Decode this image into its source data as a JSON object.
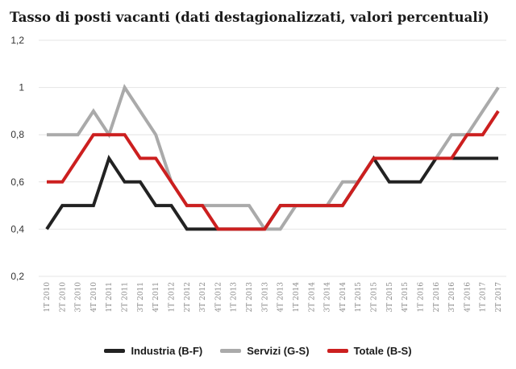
{
  "chart_data": {
    "type": "line",
    "title": "Tasso di posti vacanti (dati destagionalizzati, valori percentuali)",
    "categories": [
      "1T 2010",
      "2T 2010",
      "3T 2010",
      "4T 2010",
      "1T 2011",
      "2T 2011",
      "3T 2011",
      "4T 2011",
      "1T 2012",
      "2T 2012",
      "3T 2012",
      "4T 2012",
      "1T 2013",
      "2T 2013",
      "3T 2013",
      "4T 2013",
      "1T 2014",
      "2T 2014",
      "3T 2014",
      "4T 2014",
      "1T 2015",
      "2T 2015",
      "3T 2015",
      "4T 2015",
      "1T 2016",
      "2T 2016",
      "3T 2016",
      "4T 2016",
      "1T 2017",
      "2T 2017"
    ],
    "series": [
      {
        "name": "Industria (B-F)",
        "color": "#222222",
        "values": [
          0.4,
          0.5,
          0.5,
          0.5,
          0.7,
          0.6,
          0.6,
          0.5,
          0.5,
          0.4,
          0.4,
          0.4,
          0.4,
          0.4,
          0.4,
          0.5,
          0.5,
          0.5,
          0.5,
          0.5,
          0.6,
          0.7,
          0.6,
          0.6,
          0.6,
          0.7,
          0.7,
          0.7,
          0.7,
          0.7
        ]
      },
      {
        "name": "Servizi (G-S)",
        "color": "#aaaaaa",
        "values": [
          0.8,
          0.8,
          0.8,
          0.9,
          0.8,
          1.0,
          0.9,
          0.8,
          0.6,
          0.5,
          0.5,
          0.5,
          0.5,
          0.5,
          0.4,
          0.4,
          0.5,
          0.5,
          0.5,
          0.6,
          0.6,
          0.7,
          0.7,
          0.7,
          0.7,
          0.7,
          0.8,
          0.8,
          0.9,
          1.0
        ]
      },
      {
        "name": "Totale (B-S)",
        "color": "#cc1f1f",
        "values": [
          0.6,
          0.6,
          0.7,
          0.8,
          0.8,
          0.8,
          0.7,
          0.7,
          0.6,
          0.5,
          0.5,
          0.4,
          0.4,
          0.4,
          0.4,
          0.5,
          0.5,
          0.5,
          0.5,
          0.5,
          0.6,
          0.7,
          0.7,
          0.7,
          0.7,
          0.7,
          0.7,
          0.8,
          0.8,
          0.9
        ]
      }
    ],
    "ylim": [
      0.2,
      1.2
    ],
    "yticks": [
      "0,2",
      "0,4",
      "0,6",
      "0,8",
      "1",
      "1,2"
    ],
    "xlabel": "",
    "ylabel": "",
    "grid": true,
    "legend_position": "bottom"
  }
}
